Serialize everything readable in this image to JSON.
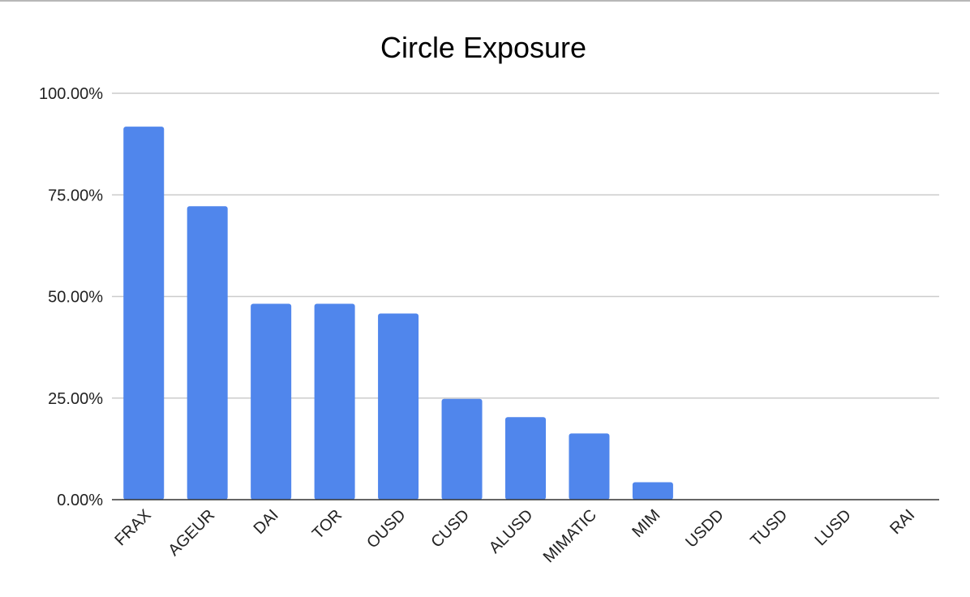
{
  "chart_data": {
    "type": "bar",
    "title": "Circle Exposure",
    "xlabel": "",
    "ylabel": "",
    "categories": [
      "FRAX",
      "AGEUR",
      "DAI",
      "TOR",
      "OUSD",
      "CUSD",
      "ALUSD",
      "MIMATIC",
      "MIM",
      "USDD",
      "TUSD",
      "LUSD",
      "RAI"
    ],
    "values": [
      91.8,
      72.2,
      48.2,
      48.2,
      45.8,
      24.8,
      20.3,
      16.3,
      4.3,
      0,
      0,
      0,
      0
    ],
    "value_format": "percent",
    "ylim": [
      0,
      100
    ],
    "yticks": [
      0,
      25,
      50,
      75,
      100
    ],
    "ytick_labels": [
      "0.00%",
      "25.00%",
      "50.00%",
      "75.00%",
      "100.00%"
    ],
    "grid": true,
    "legend": "none",
    "colors": {
      "bar": "#5086ec",
      "grid": "#cccccc",
      "axis": "#333333"
    }
  }
}
